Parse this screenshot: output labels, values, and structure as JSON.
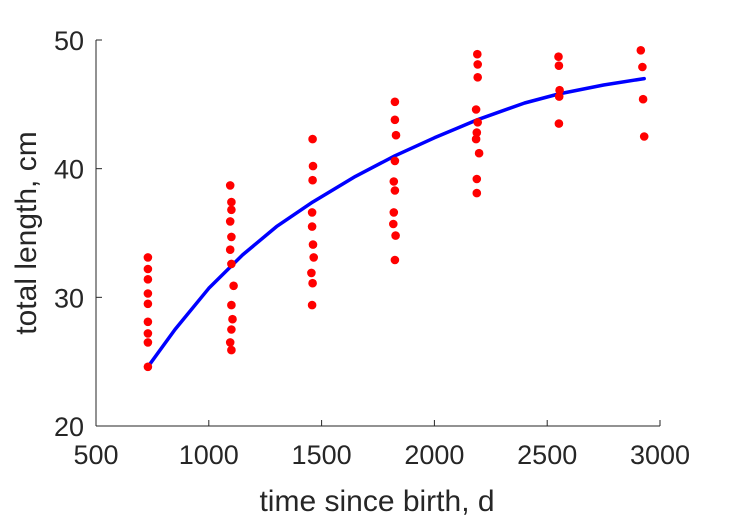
{
  "chart_data": {
    "type": "scatter",
    "title": "",
    "xlabel": "time since birth, d",
    "ylabel": "total length, cm",
    "xlim": [
      500,
      3000
    ],
    "ylim": [
      20,
      50
    ],
    "xticks": [
      500,
      1000,
      1500,
      2000,
      2500,
      3000
    ],
    "yticks": [
      20,
      30,
      40,
      50
    ],
    "grid": false,
    "legend": "none",
    "colors": {
      "points": "#ff0000",
      "fit": "#0000ff",
      "axes": "#262626"
    },
    "points": [
      {
        "x": 730,
        "y": 33.1
      },
      {
        "x": 730,
        "y": 32.2
      },
      {
        "x": 730,
        "y": 31.4
      },
      {
        "x": 730,
        "y": 30.3
      },
      {
        "x": 730,
        "y": 29.5
      },
      {
        "x": 730,
        "y": 28.1
      },
      {
        "x": 730,
        "y": 27.2
      },
      {
        "x": 730,
        "y": 26.5
      },
      {
        "x": 730,
        "y": 24.6
      },
      {
        "x": 1095,
        "y": 38.7
      },
      {
        "x": 1100,
        "y": 37.4
      },
      {
        "x": 1100,
        "y": 36.8
      },
      {
        "x": 1095,
        "y": 35.9
      },
      {
        "x": 1100,
        "y": 34.7
      },
      {
        "x": 1095,
        "y": 33.7
      },
      {
        "x": 1100,
        "y": 32.6
      },
      {
        "x": 1110,
        "y": 30.9
      },
      {
        "x": 1100,
        "y": 29.4
      },
      {
        "x": 1105,
        "y": 28.3
      },
      {
        "x": 1100,
        "y": 27.5
      },
      {
        "x": 1095,
        "y": 26.5
      },
      {
        "x": 1100,
        "y": 25.9
      },
      {
        "x": 1460,
        "y": 42.3
      },
      {
        "x": 1462,
        "y": 40.2
      },
      {
        "x": 1460,
        "y": 39.1
      },
      {
        "x": 1458,
        "y": 36.6
      },
      {
        "x": 1458,
        "y": 35.5
      },
      {
        "x": 1462,
        "y": 34.1
      },
      {
        "x": 1465,
        "y": 33.1
      },
      {
        "x": 1455,
        "y": 31.9
      },
      {
        "x": 1460,
        "y": 31.1
      },
      {
        "x": 1458,
        "y": 29.4
      },
      {
        "x": 1825,
        "y": 45.2
      },
      {
        "x": 1825,
        "y": 43.8
      },
      {
        "x": 1830,
        "y": 42.6
      },
      {
        "x": 1825,
        "y": 40.6
      },
      {
        "x": 1820,
        "y": 39.0
      },
      {
        "x": 1825,
        "y": 38.3
      },
      {
        "x": 1820,
        "y": 36.6
      },
      {
        "x": 1818,
        "y": 35.7
      },
      {
        "x": 1828,
        "y": 34.8
      },
      {
        "x": 1825,
        "y": 32.9
      },
      {
        "x": 2190,
        "y": 48.9
      },
      {
        "x": 2192,
        "y": 48.1
      },
      {
        "x": 2192,
        "y": 47.1
      },
      {
        "x": 2185,
        "y": 44.6
      },
      {
        "x": 2192,
        "y": 43.6
      },
      {
        "x": 2188,
        "y": 42.8
      },
      {
        "x": 2185,
        "y": 42.3
      },
      {
        "x": 2198,
        "y": 41.2
      },
      {
        "x": 2188,
        "y": 39.2
      },
      {
        "x": 2188,
        "y": 38.1
      },
      {
        "x": 2550,
        "y": 48.7
      },
      {
        "x": 2552,
        "y": 48.0
      },
      {
        "x": 2555,
        "y": 46.1
      },
      {
        "x": 2553,
        "y": 45.6
      },
      {
        "x": 2552,
        "y": 43.5
      },
      {
        "x": 2915,
        "y": 49.2
      },
      {
        "x": 2922,
        "y": 47.9
      },
      {
        "x": 2925,
        "y": 45.4
      },
      {
        "x": 2930,
        "y": 42.5
      }
    ],
    "fit_line": [
      {
        "x": 730,
        "y": 24.6
      },
      {
        "x": 850,
        "y": 27.5
      },
      {
        "x": 1000,
        "y": 30.7
      },
      {
        "x": 1150,
        "y": 33.3
      },
      {
        "x": 1300,
        "y": 35.5
      },
      {
        "x": 1460,
        "y": 37.4
      },
      {
        "x": 1650,
        "y": 39.4
      },
      {
        "x": 1825,
        "y": 41.0
      },
      {
        "x": 2000,
        "y": 42.4
      },
      {
        "x": 2190,
        "y": 43.8
      },
      {
        "x": 2400,
        "y": 45.1
      },
      {
        "x": 2550,
        "y": 45.8
      },
      {
        "x": 2750,
        "y": 46.5
      },
      {
        "x": 2930,
        "y": 47.0
      }
    ]
  }
}
